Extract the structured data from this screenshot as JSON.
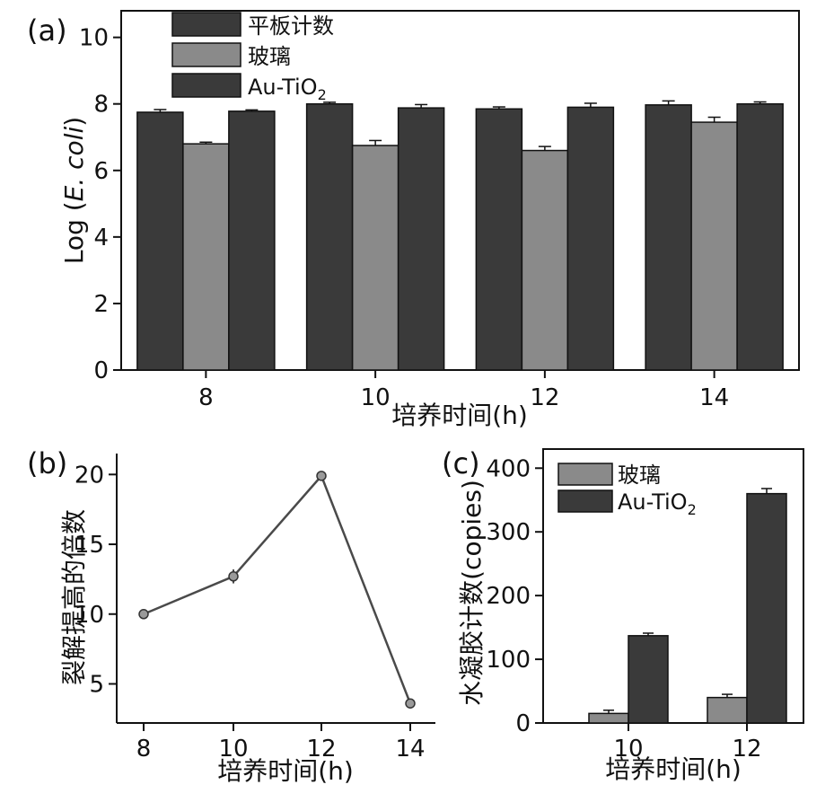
{
  "colors": {
    "dark": "#3a3a3a",
    "light": "#8a8a8a",
    "line": "#4a4a4a",
    "marker": "#9a9a9a"
  },
  "chart_data": [
    {
      "panel": "(a)",
      "type": "bar",
      "categories": [
        "8",
        "10",
        "12",
        "14"
      ],
      "series": [
        {
          "name": "平板计数",
          "values": [
            7.75,
            8.0,
            7.85,
            7.97
          ],
          "errors": [
            0.08,
            0.05,
            0.06,
            0.12
          ]
        },
        {
          "name": "玻璃",
          "values": [
            6.8,
            6.75,
            6.6,
            7.45
          ],
          "errors": [
            0.05,
            0.15,
            0.12,
            0.15
          ]
        },
        {
          "name_main": "Au-TiO",
          "name_sub": "2",
          "values": [
            7.78,
            7.88,
            7.9,
            8.0
          ],
          "errors": [
            0.04,
            0.1,
            0.12,
            0.06
          ]
        }
      ],
      "xlabel": "培养时间(h)",
      "ylabel_pre": "Log (",
      "ylabel_italic": "E. coli",
      "ylabel_post": ")",
      "yticks": [
        "0",
        "2",
        "4",
        "6",
        "8",
        "10"
      ],
      "ylim": [
        0,
        10.8
      ],
      "legend": "top-left"
    },
    {
      "panel": "(b)",
      "type": "line",
      "x": [
        "8",
        "10",
        "12",
        "14"
      ],
      "values": [
        10.0,
        12.7,
        19.9,
        3.6
      ],
      "errors": [
        0.3,
        0.5,
        0.3,
        0.2
      ],
      "xlabel": "培养时间(h)",
      "ylabel": "裂解提高的倍数",
      "yticks": [
        "5",
        "10",
        "15",
        "20"
      ],
      "ylim": [
        2.2,
        21.5
      ]
    },
    {
      "panel": "(c)",
      "type": "bar",
      "categories": [
        "10",
        "12"
      ],
      "series": [
        {
          "name": "玻璃",
          "values": [
            15,
            40
          ],
          "errors": [
            5,
            5
          ]
        },
        {
          "name_main": "Au-TiO",
          "name_sub": "2",
          "values": [
            137,
            360
          ],
          "errors": [
            4,
            8
          ]
        }
      ],
      "xlabel": "培养时间(h)",
      "ylabel": "水凝胶计数(copies)",
      "yticks": [
        "0",
        "100",
        "200",
        "300",
        "400"
      ],
      "ylim": [
        0,
        430
      ],
      "legend": "top-left"
    }
  ]
}
